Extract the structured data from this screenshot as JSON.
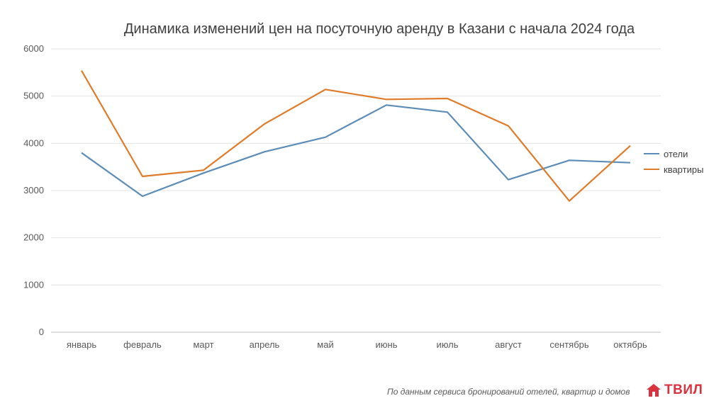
{
  "chart_data": {
    "type": "line",
    "title": "Динамика изменений цен на посуточную аренду в Казани с начала 2024 года",
    "categories": [
      "январь",
      "февраль",
      "март",
      "апрель",
      "май",
      "июнь",
      "июль",
      "август",
      "сентябрь",
      "октябрь"
    ],
    "series": [
      {
        "name": "отели",
        "color": "#5b8db8",
        "values": [
          3800,
          2880,
          3370,
          3820,
          4130,
          4810,
          4660,
          3230,
          3640,
          3590
        ]
      },
      {
        "name": "квартиры",
        "color": "#e07b2a",
        "values": [
          5540,
          3300,
          3430,
          4410,
          5140,
          4930,
          4950,
          4370,
          2780,
          3950
        ]
      }
    ],
    "ylim": [
      0,
      6000
    ],
    "yticks": [
      0,
      1000,
      2000,
      3000,
      4000,
      5000,
      6000
    ],
    "grid": true,
    "legend_position": "right"
  },
  "footer": {
    "source_text": "По данным сервиса бронирований отелей, квартир и домов",
    "logo_text": "ТВИЛ",
    "logo_color": "#d9333f"
  }
}
